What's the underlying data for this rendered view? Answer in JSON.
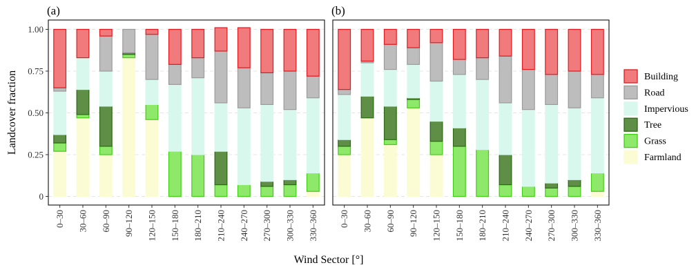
{
  "chart_data": {
    "type": "bar",
    "stacked": true,
    "xlabel": "Wind Sector [°]",
    "ylabel": "Landcover fraction",
    "ylim": [
      0,
      1
    ],
    "yticks": [
      "0",
      "0.25",
      "0.50",
      "0.75",
      "1.00"
    ],
    "ytick_values": [
      0,
      0.25,
      0.5,
      0.75,
      1.0
    ],
    "grid": true,
    "legend_position": "right",
    "categories": [
      "0–30",
      "30–60",
      "60–90",
      "90–120",
      "120–150",
      "150–180",
      "180–210",
      "210–240",
      "240–270",
      "270–300",
      "300–330",
      "330–360"
    ],
    "legend": [
      {
        "name": "Building",
        "fill": "#f07a7c",
        "stroke": "#e01a1f"
      },
      {
        "name": "Road",
        "fill": "#bdbdbd",
        "stroke": "#9a9a9a"
      },
      {
        "name": "Impervious",
        "fill": "#d8f8ee",
        "stroke": "#d8f8ee"
      },
      {
        "name": "Tree",
        "fill": "#5f8f46",
        "stroke": "#2b6a12"
      },
      {
        "name": "Grass",
        "fill": "#8ee86a",
        "stroke": "#3fcf12"
      },
      {
        "name": "Farmland",
        "fill": "#fcfcd4",
        "stroke": "#fcfcd4"
      }
    ],
    "stack_order": [
      "Farmland",
      "Grass",
      "Tree",
      "Impervious",
      "Road",
      "Building"
    ],
    "panels": [
      {
        "label": "(a)",
        "series": [
          {
            "name": "Farmland",
            "values": [
              0.27,
              0.47,
              0.25,
              0.83,
              0.46,
              0.0,
              0.0,
              0.0,
              0.0,
              0.0,
              0.0,
              0.03
            ]
          },
          {
            "name": "Grass",
            "values": [
              0.05,
              0.02,
              0.05,
              0.02,
              0.09,
              0.27,
              0.25,
              0.07,
              0.07,
              0.06,
              0.07,
              0.11
            ]
          },
          {
            "name": "Tree",
            "values": [
              0.05,
              0.15,
              0.24,
              0.01,
              0.0,
              0.0,
              0.0,
              0.2,
              0.0,
              0.03,
              0.03,
              0.0
            ]
          },
          {
            "name": "Impervious",
            "values": [
              0.26,
              0.19,
              0.21,
              0.0,
              0.15,
              0.4,
              0.46,
              0.29,
              0.46,
              0.46,
              0.42,
              0.45
            ]
          },
          {
            "name": "Road",
            "values": [
              0.02,
              0.0,
              0.21,
              0.14,
              0.27,
              0.12,
              0.12,
              0.31,
              0.24,
              0.19,
              0.23,
              0.13
            ]
          },
          {
            "name": "Building",
            "values": [
              0.35,
              0.17,
              0.04,
              0.0,
              0.03,
              0.21,
              0.17,
              0.14,
              0.24,
              0.26,
              0.25,
              0.28
            ]
          }
        ]
      },
      {
        "label": "(b)",
        "series": [
          {
            "name": "Farmland",
            "values": [
              0.25,
              0.47,
              0.31,
              0.53,
              0.25,
              0.0,
              0.0,
              0.0,
              0.0,
              0.0,
              0.0,
              0.03
            ]
          },
          {
            "name": "Grass",
            "values": [
              0.05,
              0.0,
              0.03,
              0.05,
              0.08,
              0.3,
              0.28,
              0.07,
              0.06,
              0.05,
              0.06,
              0.11
            ]
          },
          {
            "name": "Tree",
            "values": [
              0.04,
              0.13,
              0.2,
              0.01,
              0.12,
              0.11,
              0.0,
              0.18,
              0.0,
              0.03,
              0.04,
              0.0
            ]
          },
          {
            "name": "Impervious",
            "values": [
              0.27,
              0.2,
              0.22,
              0.2,
              0.24,
              0.32,
              0.42,
              0.31,
              0.46,
              0.47,
              0.43,
              0.45
            ]
          },
          {
            "name": "Road",
            "values": [
              0.03,
              0.01,
              0.15,
              0.1,
              0.23,
              0.09,
              0.13,
              0.28,
              0.24,
              0.18,
              0.22,
              0.14
            ]
          },
          {
            "name": "Building",
            "values": [
              0.36,
              0.19,
              0.09,
              0.11,
              0.08,
              0.18,
              0.17,
              0.16,
              0.24,
              0.27,
              0.25,
              0.27
            ]
          }
        ]
      }
    ]
  }
}
